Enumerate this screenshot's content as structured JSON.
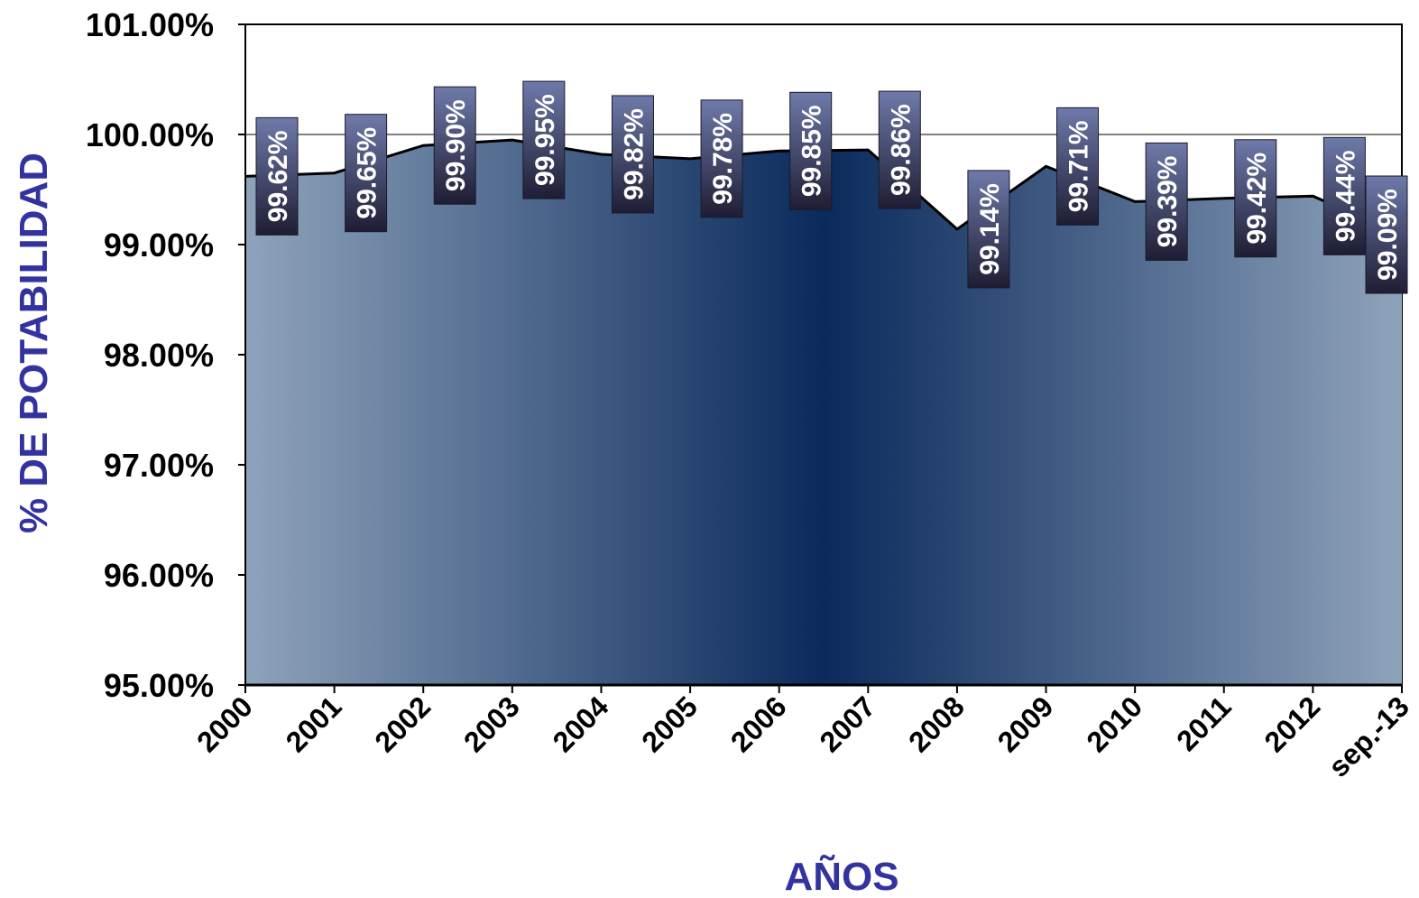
{
  "chart_data": {
    "type": "area",
    "categories": [
      "2000",
      "2001",
      "2002",
      "2003",
      "2004",
      "2005",
      "2006",
      "2007",
      "2008",
      "2009",
      "2010",
      "2011",
      "2012",
      "sep.-13"
    ],
    "values": [
      99.62,
      99.65,
      99.9,
      99.95,
      99.82,
      99.78,
      99.85,
      99.86,
      99.14,
      99.71,
      99.39,
      99.42,
      99.44,
      99.09
    ],
    "data_labels": [
      "99.62%",
      "99.65%",
      "99.90%",
      "99.95%",
      "99.82%",
      "99.78%",
      "99.85%",
      "99.86%",
      "99.14%",
      "99.71%",
      "99.39%",
      "99.42%",
      "99.44%",
      "99.09%"
    ],
    "ylim": [
      95,
      101
    ],
    "yticks": [
      "95.00%",
      "96.00%",
      "97.00%",
      "98.00%",
      "99.00%",
      "100.00%",
      "101.00%"
    ],
    "xlabel": "AÑOS",
    "ylabel": "% DE POTABILIDAD",
    "gridline": 100,
    "colors": {
      "fill_edge": "#8ea3bb",
      "fill_center": "#0b2a5c",
      "label_top": "#6f7aaa",
      "label_bottom": "#1e1d33",
      "axis_title": "#3333a0",
      "line": "#000000"
    }
  }
}
